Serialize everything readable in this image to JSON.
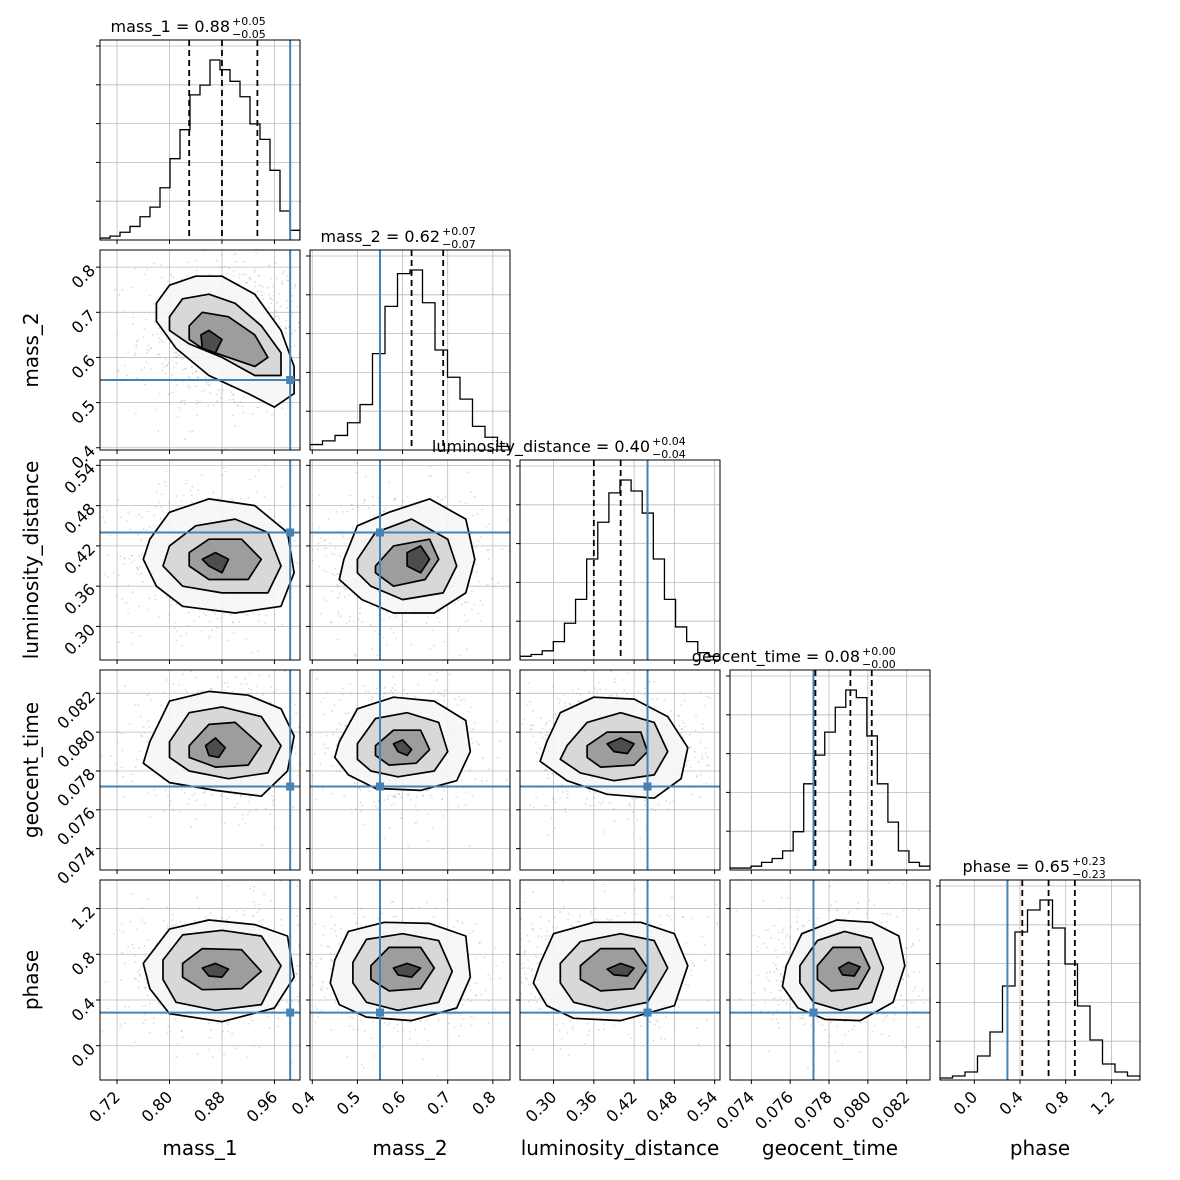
{
  "chart_data": {
    "type": "corner",
    "colors": {
      "truth": "#4682b4",
      "line": "#000000",
      "grid": "#bbbbbb",
      "scatter": "#999999"
    },
    "parameters": [
      {
        "name": "mass_1",
        "label": "mass_1",
        "title": {
          "text": "mass_1 = 0.88",
          "plus": "+0.05",
          "minus": "−0.05"
        },
        "range": [
          0.694,
          0.999
        ],
        "ticks": [
          0.72,
          0.8,
          0.88,
          0.96
        ],
        "tick_labels": [
          "0.72",
          "0.80",
          "0.88",
          "0.96"
        ],
        "quantiles": [
          0.83,
          0.88,
          0.934
        ],
        "truth": 0.984,
        "hist": [
          0.01,
          0.02,
          0.04,
          0.07,
          0.12,
          0.17,
          0.27,
          0.42,
          0.57,
          0.75,
          0.8,
          0.93,
          0.88,
          0.82,
          0.74,
          0.6,
          0.52,
          0.36,
          0.15,
          0.05
        ]
      },
      {
        "name": "mass_2",
        "label": "mass_2",
        "title": {
          "text": "mass_2 = 0.62",
          "plus": "+0.07",
          "minus": "−0.07"
        },
        "range": [
          0.395,
          0.838
        ],
        "ticks": [
          0.4,
          0.5,
          0.6,
          0.7,
          0.8
        ],
        "tick_labels": [
          "0.4",
          "0.5",
          "0.6",
          "0.7",
          "0.8"
        ],
        "quantiles": [
          0.55,
          0.62,
          0.69
        ],
        "truth": 0.55,
        "hist": [
          0.03,
          0.05,
          0.08,
          0.15,
          0.25,
          0.53,
          0.79,
          0.97,
          0.99,
          0.81,
          0.55,
          0.4,
          0.28,
          0.13,
          0.07,
          0.02
        ]
      },
      {
        "name": "luminosity_distance",
        "label": "luminosity_distance",
        "title": {
          "text": "luminosity_distance = 0.40",
          "plus": "+0.04",
          "minus": "−0.04"
        },
        "range": [
          0.25,
          0.548
        ],
        "ticks": [
          0.3,
          0.36,
          0.42,
          0.48,
          0.54
        ],
        "tick_labels": [
          "0.30",
          "0.36",
          "0.42",
          "0.48",
          "0.54"
        ],
        "quantiles": [
          0.36,
          0.4,
          0.44
        ],
        "truth": 0.44,
        "hist": [
          0.02,
          0.03,
          0.05,
          0.1,
          0.2,
          0.33,
          0.55,
          0.75,
          0.91,
          0.98,
          0.92,
          0.8,
          0.55,
          0.33,
          0.18,
          0.1,
          0.04,
          0.02
        ]
      },
      {
        "name": "geocent_time",
        "label": "geocent_time",
        "title": {
          "text": "geocent_time = 0.08",
          "plus": "+0.00",
          "minus": "−0.00"
        },
        "range": [
          0.0729,
          0.0832
        ],
        "ticks": [
          0.074,
          0.076,
          0.078,
          0.08,
          0.082
        ],
        "tick_labels": [
          "0.074",
          "0.076",
          "0.078",
          "0.080",
          "0.082"
        ],
        "quantiles": [
          0.0773,
          0.0791,
          0.0802
        ],
        "truth": 0.0772,
        "hist": [
          0.01,
          0.01,
          0.02,
          0.04,
          0.06,
          0.1,
          0.2,
          0.45,
          0.6,
          0.72,
          0.85,
          0.94,
          0.9,
          0.7,
          0.45,
          0.25,
          0.1,
          0.04,
          0.02
        ]
      },
      {
        "name": "phase",
        "label": "phase",
        "title": {
          "text": "phase = 0.65",
          "plus": "+0.23",
          "minus": "−0.23"
        },
        "range": [
          -0.3,
          1.45
        ],
        "ticks": [
          0.0,
          0.4,
          0.8,
          1.2
        ],
        "tick_labels": [
          "0.0",
          "0.4",
          "0.8",
          "1.2"
        ],
        "quantiles": [
          0.42,
          0.65,
          0.88
        ],
        "truth": 0.29,
        "hist": [
          0.01,
          0.02,
          0.04,
          0.12,
          0.24,
          0.47,
          0.74,
          0.85,
          0.9,
          0.76,
          0.58,
          0.37,
          0.2,
          0.08,
          0.04,
          0.02
        ]
      }
    ],
    "contours": {
      "1-0": [
        {
          "x": [
            0.78,
            0.8,
            0.84,
            0.88,
            0.93,
            0.97,
            0.99,
            0.99,
            0.96,
            0.92,
            0.86,
            0.81,
            0.78
          ],
          "y": [
            0.72,
            0.76,
            0.78,
            0.78,
            0.74,
            0.66,
            0.58,
            0.52,
            0.49,
            0.52,
            0.56,
            0.62,
            0.68
          ]
        },
        {
          "x": [
            0.8,
            0.82,
            0.86,
            0.9,
            0.94,
            0.97,
            0.97,
            0.93,
            0.88,
            0.83,
            0.8
          ],
          "y": [
            0.69,
            0.73,
            0.74,
            0.72,
            0.67,
            0.61,
            0.56,
            0.56,
            0.6,
            0.63,
            0.66
          ]
        },
        {
          "x": [
            0.83,
            0.85,
            0.89,
            0.93,
            0.95,
            0.93,
            0.89,
            0.85,
            0.83
          ],
          "y": [
            0.67,
            0.7,
            0.69,
            0.65,
            0.6,
            0.58,
            0.6,
            0.62,
            0.64
          ]
        },
        {
          "x": [
            0.848,
            0.86,
            0.88,
            0.87,
            0.85
          ],
          "y": [
            0.65,
            0.66,
            0.64,
            0.61,
            0.62
          ]
        }
      ],
      "2-0": [
        {
          "x": [
            0.77,
            0.8,
            0.86,
            0.93,
            0.98,
            0.99,
            0.97,
            0.9,
            0.82,
            0.78,
            0.76
          ],
          "y": [
            0.43,
            0.47,
            0.49,
            0.48,
            0.44,
            0.38,
            0.33,
            0.32,
            0.33,
            0.36,
            0.4
          ]
        },
        {
          "x": [
            0.8,
            0.84,
            0.9,
            0.95,
            0.97,
            0.95,
            0.88,
            0.82,
            0.79
          ],
          "y": [
            0.42,
            0.45,
            0.46,
            0.44,
            0.39,
            0.35,
            0.35,
            0.36,
            0.39
          ]
        },
        {
          "x": [
            0.83,
            0.86,
            0.91,
            0.94,
            0.92,
            0.86,
            0.83
          ],
          "y": [
            0.41,
            0.43,
            0.43,
            0.4,
            0.37,
            0.37,
            0.39
          ]
        },
        {
          "x": [
            0.85,
            0.87,
            0.89,
            0.88,
            0.86
          ],
          "y": [
            0.4,
            0.41,
            0.4,
            0.38,
            0.39
          ]
        }
      ],
      "3-0": [
        {
          "x": [
            0.77,
            0.8,
            0.86,
            0.92,
            0.97,
            0.99,
            0.98,
            0.94,
            0.87,
            0.8,
            0.76
          ],
          "y": [
            0.0795,
            0.0816,
            0.0821,
            0.0819,
            0.0812,
            0.0798,
            0.078,
            0.0767,
            0.077,
            0.0774,
            0.0784
          ]
        },
        {
          "x": [
            0.8,
            0.83,
            0.88,
            0.94,
            0.97,
            0.95,
            0.89,
            0.83,
            0.8
          ],
          "y": [
            0.0795,
            0.081,
            0.0813,
            0.0808,
            0.0793,
            0.0779,
            0.0776,
            0.078,
            0.0787
          ]
        },
        {
          "x": [
            0.83,
            0.86,
            0.9,
            0.94,
            0.92,
            0.87,
            0.83
          ],
          "y": [
            0.0793,
            0.0804,
            0.0805,
            0.0793,
            0.0783,
            0.0782,
            0.0787
          ]
        },
        {
          "x": [
            0.855,
            0.87,
            0.885,
            0.875,
            0.86
          ],
          "y": [
            0.0793,
            0.0797,
            0.0792,
            0.0787,
            0.0788
          ]
        }
      ],
      "4-0": [
        {
          "x": [
            0.76,
            0.8,
            0.86,
            0.93,
            0.98,
            0.99,
            0.96,
            0.88,
            0.8,
            0.77
          ],
          "y": [
            0.72,
            1.02,
            1.1,
            1.06,
            0.96,
            0.6,
            0.33,
            0.21,
            0.28,
            0.5
          ]
        },
        {
          "x": [
            0.79,
            0.82,
            0.88,
            0.94,
            0.97,
            0.94,
            0.87,
            0.81,
            0.79
          ],
          "y": [
            0.75,
            0.97,
            1.01,
            0.96,
            0.7,
            0.36,
            0.31,
            0.38,
            0.58
          ]
        },
        {
          "x": [
            0.82,
            0.85,
            0.91,
            0.94,
            0.91,
            0.85,
            0.82
          ],
          "y": [
            0.72,
            0.85,
            0.84,
            0.65,
            0.5,
            0.49,
            0.6
          ]
        },
        {
          "x": [
            0.85,
            0.87,
            0.89,
            0.88,
            0.86
          ],
          "y": [
            0.68,
            0.72,
            0.67,
            0.6,
            0.61
          ]
        }
      ],
      "2-1": [
        {
          "x": [
            0.47,
            0.5,
            0.57,
            0.66,
            0.74,
            0.76,
            0.74,
            0.67,
            0.58,
            0.51,
            0.46
          ],
          "y": [
            0.4,
            0.45,
            0.47,
            0.49,
            0.46,
            0.4,
            0.35,
            0.32,
            0.32,
            0.34,
            0.37
          ]
        },
        {
          "x": [
            0.5,
            0.54,
            0.62,
            0.7,
            0.72,
            0.69,
            0.6,
            0.53,
            0.5
          ],
          "y": [
            0.4,
            0.44,
            0.46,
            0.43,
            0.39,
            0.35,
            0.34,
            0.36,
            0.38
          ]
        },
        {
          "x": [
            0.54,
            0.58,
            0.66,
            0.68,
            0.65,
            0.58,
            0.54
          ],
          "y": [
            0.39,
            0.42,
            0.43,
            0.4,
            0.37,
            0.36,
            0.38
          ]
        },
        {
          "x": [
            0.61,
            0.64,
            0.66,
            0.64,
            0.61
          ],
          "y": [
            0.41,
            0.42,
            0.4,
            0.38,
            0.39
          ]
        }
      ],
      "3-1": [
        {
          "x": [
            0.46,
            0.5,
            0.58,
            0.67,
            0.74,
            0.75,
            0.72,
            0.64,
            0.54,
            0.48,
            0.45
          ],
          "y": [
            0.0795,
            0.0812,
            0.0818,
            0.0816,
            0.0806,
            0.079,
            0.0775,
            0.077,
            0.0771,
            0.0778,
            0.0787
          ]
        },
        {
          "x": [
            0.5,
            0.54,
            0.61,
            0.68,
            0.7,
            0.67,
            0.59,
            0.53,
            0.5
          ],
          "y": [
            0.0794,
            0.0807,
            0.081,
            0.0805,
            0.079,
            0.078,
            0.0777,
            0.078,
            0.0786
          ]
        },
        {
          "x": [
            0.54,
            0.58,
            0.64,
            0.66,
            0.63,
            0.57,
            0.54
          ],
          "y": [
            0.0793,
            0.0801,
            0.0801,
            0.0791,
            0.0784,
            0.0783,
            0.0788
          ]
        },
        {
          "x": [
            0.58,
            0.6,
            0.62,
            0.61,
            0.59
          ],
          "y": [
            0.0794,
            0.0796,
            0.0791,
            0.0788,
            0.079
          ]
        }
      ],
      "4-1": [
        {
          "x": [
            0.45,
            0.48,
            0.56,
            0.66,
            0.74,
            0.75,
            0.72,
            0.62,
            0.52,
            0.46,
            0.44
          ],
          "y": [
            0.75,
            1.0,
            1.08,
            1.07,
            0.96,
            0.6,
            0.33,
            0.22,
            0.25,
            0.36,
            0.55
          ]
        },
        {
          "x": [
            0.49,
            0.52,
            0.6,
            0.68,
            0.71,
            0.68,
            0.59,
            0.52,
            0.49
          ],
          "y": [
            0.73,
            0.93,
            0.98,
            0.92,
            0.65,
            0.38,
            0.31,
            0.38,
            0.55
          ]
        },
        {
          "x": [
            0.53,
            0.57,
            0.64,
            0.67,
            0.64,
            0.57,
            0.53
          ],
          "y": [
            0.7,
            0.86,
            0.86,
            0.68,
            0.5,
            0.48,
            0.58
          ]
        },
        {
          "x": [
            0.58,
            0.61,
            0.64,
            0.62,
            0.59
          ],
          "y": [
            0.68,
            0.72,
            0.68,
            0.6,
            0.62
          ]
        }
      ],
      "3-2": [
        {
          "x": [
            0.29,
            0.31,
            0.36,
            0.42,
            0.47,
            0.5,
            0.49,
            0.45,
            0.38,
            0.32,
            0.28
          ],
          "y": [
            0.0795,
            0.081,
            0.0818,
            0.0817,
            0.0808,
            0.0792,
            0.0776,
            0.0766,
            0.0768,
            0.0775,
            0.0785
          ]
        },
        {
          "x": [
            0.32,
            0.35,
            0.4,
            0.45,
            0.47,
            0.45,
            0.39,
            0.34,
            0.31
          ],
          "y": [
            0.0793,
            0.0805,
            0.081,
            0.0805,
            0.079,
            0.0778,
            0.0775,
            0.0779,
            0.0786
          ]
        },
        {
          "x": [
            0.35,
            0.38,
            0.43,
            0.44,
            0.42,
            0.37,
            0.35
          ],
          "y": [
            0.0793,
            0.08,
            0.08,
            0.079,
            0.0783,
            0.0782,
            0.0787
          ]
        },
        {
          "x": [
            0.38,
            0.4,
            0.42,
            0.41,
            0.39
          ],
          "y": [
            0.0794,
            0.0797,
            0.0794,
            0.0789,
            0.079
          ]
        }
      ],
      "4-2": [
        {
          "x": [
            0.28,
            0.3,
            0.36,
            0.43,
            0.48,
            0.5,
            0.48,
            0.4,
            0.33,
            0.29,
            0.27
          ],
          "y": [
            0.72,
            0.98,
            1.08,
            1.08,
            0.98,
            0.7,
            0.35,
            0.22,
            0.24,
            0.35,
            0.55
          ]
        },
        {
          "x": [
            0.31,
            0.34,
            0.4,
            0.45,
            0.47,
            0.44,
            0.38,
            0.33,
            0.31
          ],
          "y": [
            0.72,
            0.91,
            0.98,
            0.92,
            0.68,
            0.38,
            0.31,
            0.38,
            0.55
          ]
        },
        {
          "x": [
            0.34,
            0.37,
            0.42,
            0.44,
            0.42,
            0.37,
            0.34
          ],
          "y": [
            0.7,
            0.85,
            0.85,
            0.68,
            0.5,
            0.48,
            0.58
          ]
        },
        {
          "x": [
            0.38,
            0.4,
            0.42,
            0.41,
            0.39
          ],
          "y": [
            0.67,
            0.72,
            0.68,
            0.61,
            0.62
          ]
        }
      ],
      "4-3": [
        {
          "x": [
            0.0758,
            0.0766,
            0.0784,
            0.0802,
            0.0816,
            0.0819,
            0.0813,
            0.0796,
            0.0778,
            0.0764,
            0.0756
          ],
          "y": [
            0.7,
            0.98,
            1.1,
            1.08,
            0.96,
            0.7,
            0.38,
            0.22,
            0.23,
            0.33,
            0.52
          ]
        },
        {
          "x": [
            0.0765,
            0.0774,
            0.0788,
            0.0802,
            0.0808,
            0.0802,
            0.0786,
            0.0772,
            0.0765
          ],
          "y": [
            0.7,
            0.92,
            1.0,
            0.94,
            0.68,
            0.38,
            0.31,
            0.38,
            0.55
          ]
        },
        {
          "x": [
            0.0774,
            0.0782,
            0.0796,
            0.0801,
            0.0795,
            0.0781,
            0.0774
          ],
          "y": [
            0.7,
            0.86,
            0.86,
            0.68,
            0.5,
            0.48,
            0.58
          ]
        },
        {
          "x": [
            0.0785,
            0.079,
            0.0796,
            0.0793,
            0.0787
          ],
          "y": [
            0.68,
            0.73,
            0.69,
            0.61,
            0.62
          ]
        }
      ]
    }
  }
}
